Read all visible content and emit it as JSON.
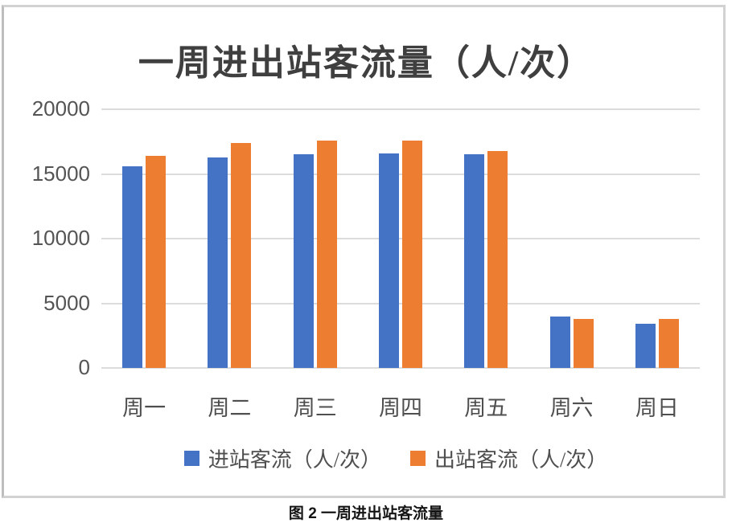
{
  "chart_data": {
    "type": "bar",
    "title": "一周进出站客流量（人/次）",
    "categories": [
      "周一",
      "周二",
      "周三",
      "周四",
      "周五",
      "周六",
      "周日"
    ],
    "series": [
      {
        "name": "进站客流（人/次）",
        "color": "#4472C4",
        "values": [
          15600,
          16300,
          16500,
          16600,
          16500,
          4000,
          3400
        ]
      },
      {
        "name": "出站客流（人/次）",
        "color": "#ED7D31",
        "values": [
          16400,
          17400,
          17600,
          17600,
          16800,
          3800,
          3800
        ]
      }
    ],
    "xlabel": "",
    "ylabel": "",
    "ylim": [
      0,
      20000
    ],
    "yticks": [
      0,
      5000,
      10000,
      15000,
      20000
    ],
    "grid": true,
    "legend_position": "bottom"
  },
  "caption": "图 2 一周进出站客流量",
  "colors": {
    "series_blue": "#4472C4",
    "series_orange": "#ED7D31",
    "gridline": "#DCDCDC",
    "title_text": "#3F3F3F",
    "axis_text": "#545454",
    "box_border": "#D2D2D2"
  }
}
